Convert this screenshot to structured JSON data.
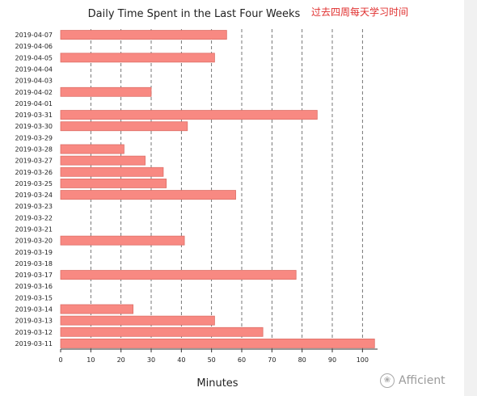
{
  "annotation_note": "过去四周每天学习时间",
  "watermark": {
    "text": "Afficient",
    "icon": "paw-icon"
  },
  "colors": {
    "bar_fill": "#f88982",
    "bar_stroke": "#dd6e66",
    "grid": "#555555",
    "axis": "#333333"
  },
  "chart_data": {
    "type": "bar",
    "orientation": "horizontal",
    "title": "Daily Time Spent in the Last Four Weeks",
    "xlabel": "Minutes",
    "ylabel": "",
    "xlim": [
      0,
      105
    ],
    "xticks": [
      0,
      10,
      20,
      30,
      40,
      50,
      60,
      70,
      80,
      90,
      100
    ],
    "grid": "vertical-dashed",
    "categories": [
      "2019-04-07",
      "2019-04-06",
      "2019-04-05",
      "2019-04-04",
      "2019-04-03",
      "2019-04-02",
      "2019-04-01",
      "2019-03-31",
      "2019-03-30",
      "2019-03-29",
      "2019-03-28",
      "2019-03-27",
      "2019-03-26",
      "2019-03-25",
      "2019-03-24",
      "2019-03-23",
      "2019-03-22",
      "2019-03-21",
      "2019-03-20",
      "2019-03-19",
      "2019-03-18",
      "2019-03-17",
      "2019-03-16",
      "2019-03-15",
      "2019-03-14",
      "2019-03-13",
      "2019-03-12",
      "2019-03-11"
    ],
    "values": [
      55,
      0,
      51,
      0,
      0,
      30,
      0,
      85,
      42,
      0,
      21,
      28,
      34,
      35,
      58,
      0,
      0,
      0,
      41,
      0,
      0,
      78,
      0,
      0,
      24,
      51,
      67,
      104
    ]
  }
}
